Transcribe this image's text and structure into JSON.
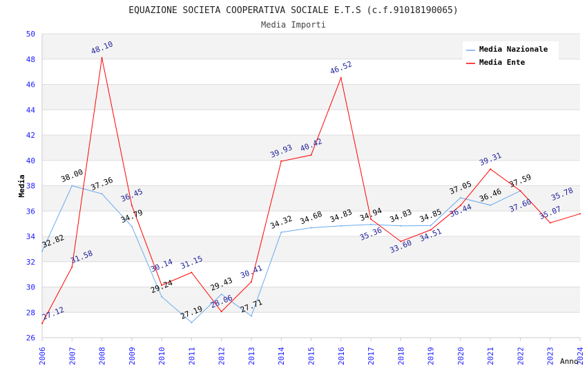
{
  "chart_data": {
    "type": "line",
    "title": "EQUAZIONE SOCIETA COOPERATIVA SOCIALE E.T.S (c.f.91018190065)",
    "subtitle": "Media Importi",
    "xlabel": "Anno",
    "ylabel": "Media",
    "ylim": [
      26,
      50
    ],
    "yticks": [
      "26",
      "28",
      "30",
      "32",
      "34",
      "36",
      "38",
      "40",
      "42",
      "44",
      "46",
      "48",
      "50"
    ],
    "x": [
      "2006",
      "2007",
      "2008",
      "2009",
      "2010",
      "2011",
      "2012",
      "2013",
      "2014",
      "2015",
      "2016",
      "2017",
      "2018",
      "2019",
      "2020",
      "2021",
      "2022",
      "2023",
      "2024"
    ],
    "legend_position": "top-right",
    "grid": true,
    "series": [
      {
        "name": "Media Nazionale",
        "color": "#6aaaee",
        "label_color": "#000000",
        "values": [
          32.82,
          38.0,
          37.36,
          34.79,
          29.24,
          27.19,
          29.43,
          27.71,
          34.32,
          34.68,
          34.83,
          34.94,
          34.83,
          34.85,
          37.05,
          36.46,
          37.59,
          null,
          null
        ]
      },
      {
        "name": "Media Ente",
        "color": "#ff0000",
        "label_color": "#22229a",
        "values": [
          27.12,
          31.58,
          48.1,
          36.45,
          30.14,
          31.15,
          28.06,
          30.41,
          39.93,
          40.42,
          46.52,
          35.36,
          33.6,
          34.51,
          36.44,
          39.31,
          37.6,
          35.07,
          35.78
        ]
      }
    ]
  }
}
